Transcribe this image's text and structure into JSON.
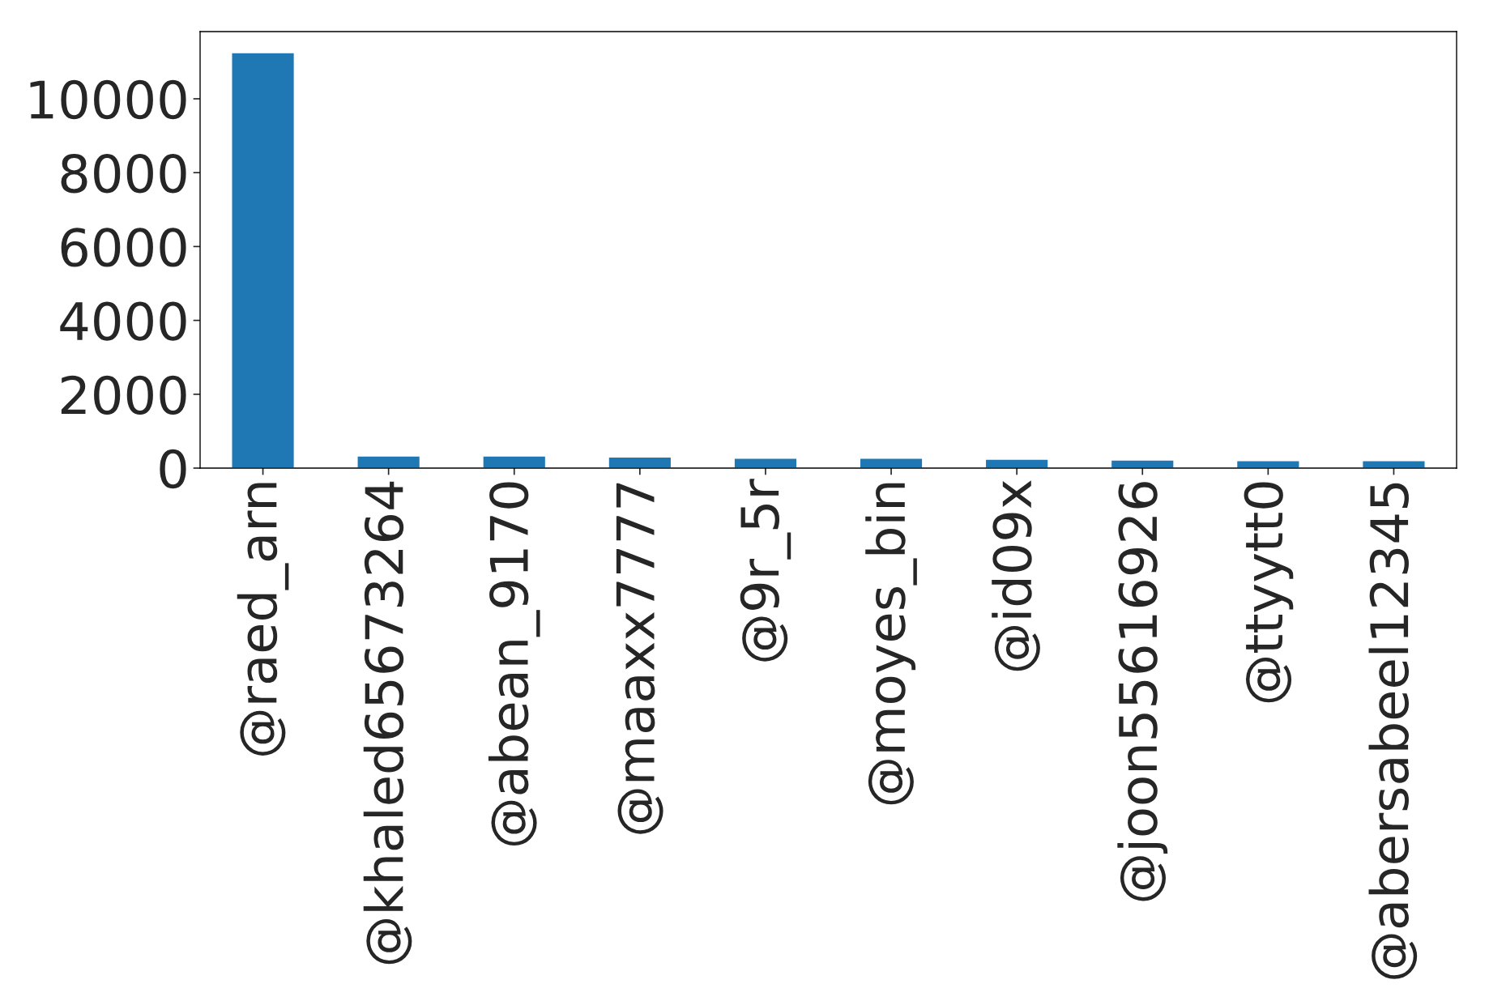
{
  "chart_data": {
    "type": "bar",
    "categories": [
      "@raed_arn",
      "@khaled65673264",
      "@abean_9170",
      "@maaxx7777",
      "@9r_5r",
      "@moyes_bin",
      "@id09x",
      "@joon55616926",
      "@ttyytt0",
      "@abersabeel12345"
    ],
    "values": [
      11250,
      330,
      330,
      300,
      265,
      265,
      240,
      220,
      200,
      200
    ],
    "color": "#1f77b4",
    "ylim": [
      0,
      11820
    ],
    "yticks": [
      0,
      2000,
      4000,
      6000,
      8000,
      10000
    ],
    "grid": false,
    "legend": false
  }
}
